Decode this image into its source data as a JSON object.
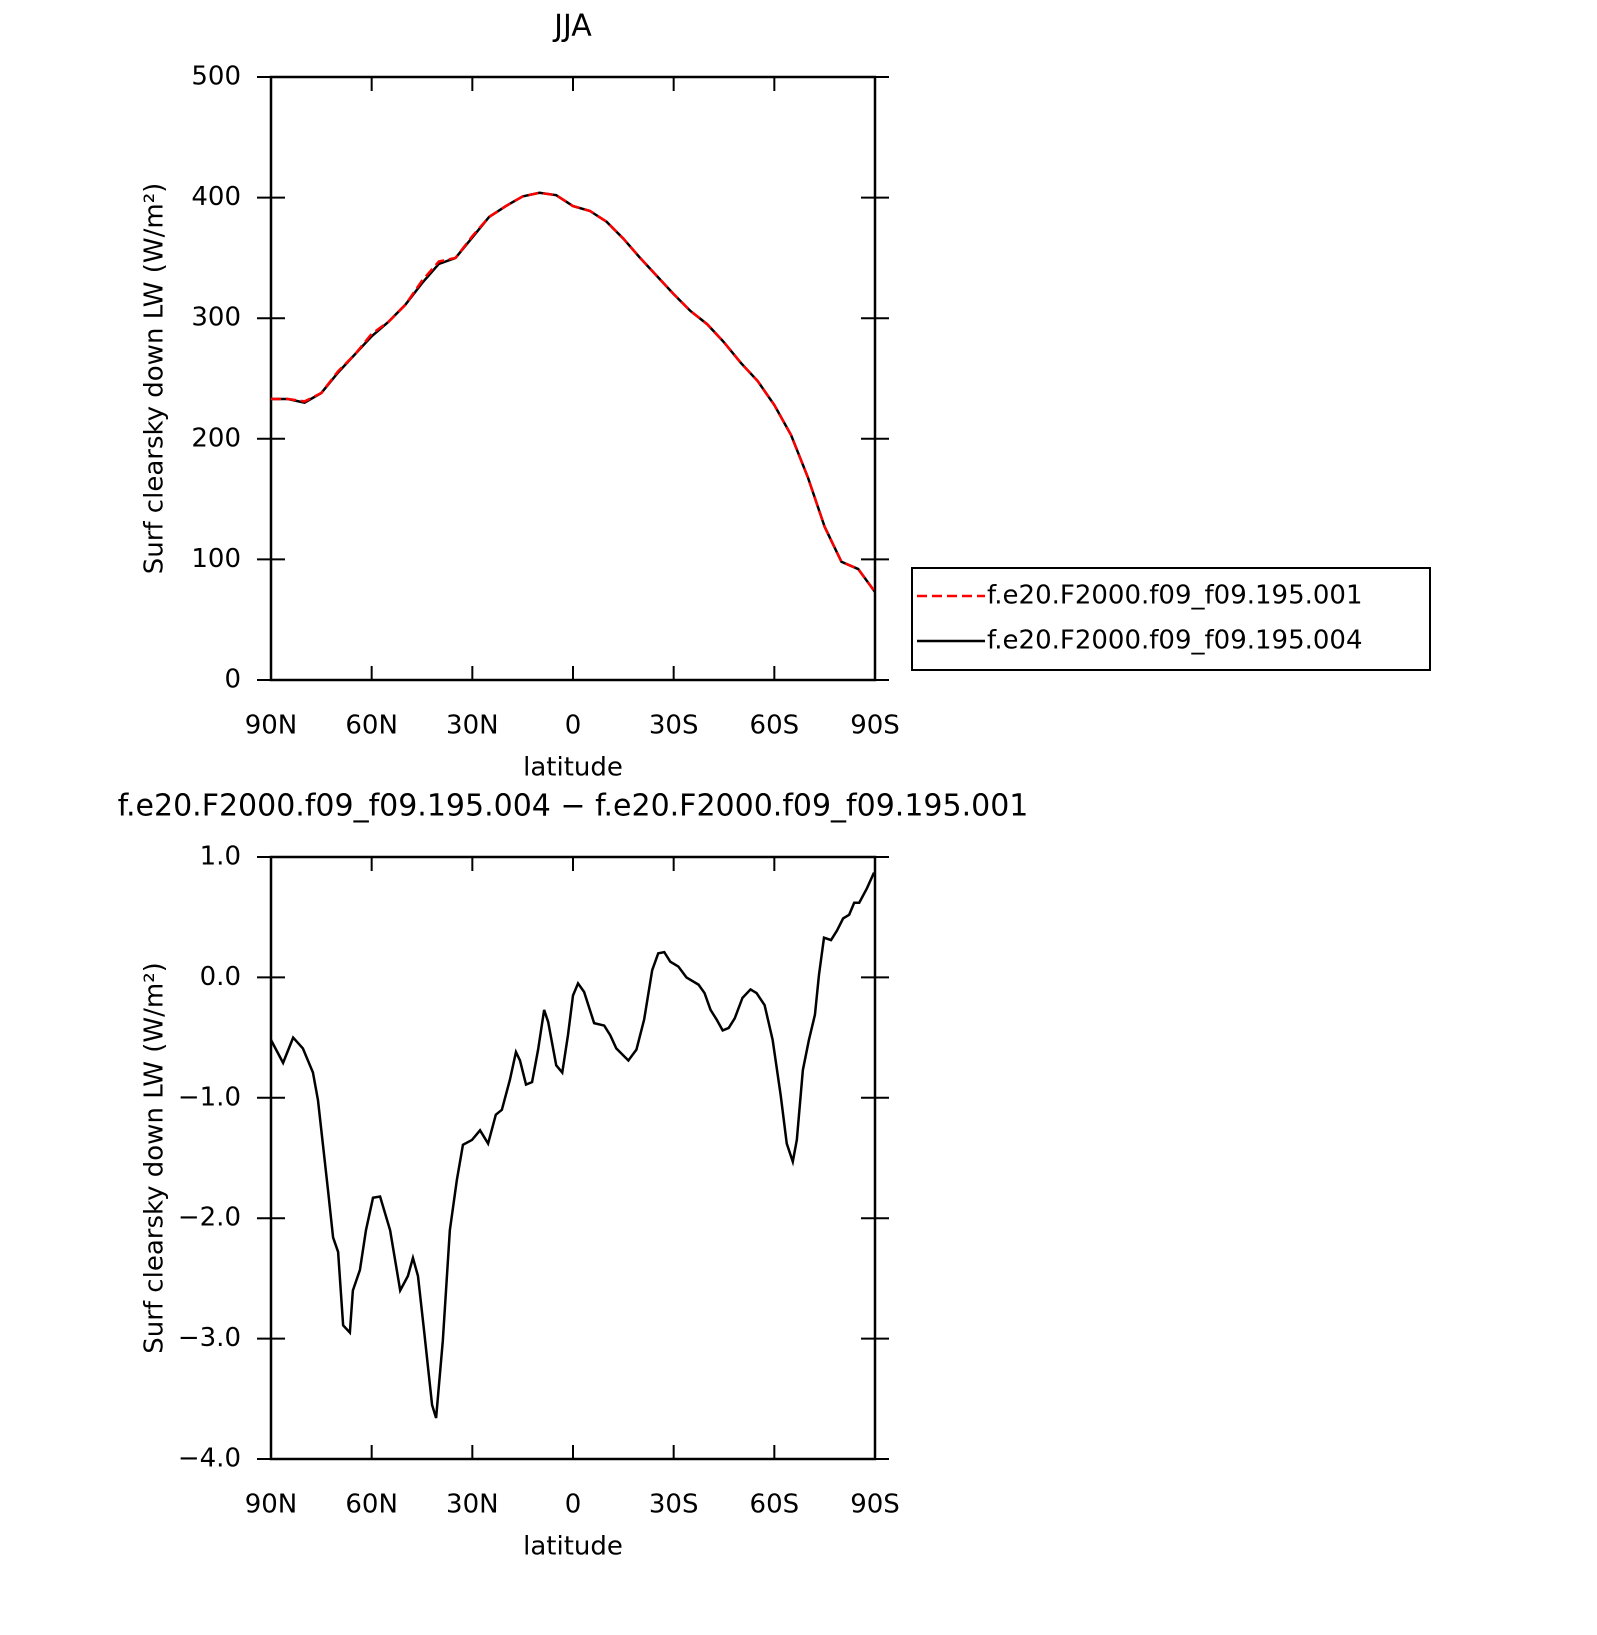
{
  "chart_data": [
    {
      "type": "line",
      "title": "JJA",
      "xlabel": "latitude",
      "ylabel": "Surf clearsky down LW (W/m²)",
      "x": [
        90,
        85,
        80,
        75,
        70,
        65,
        60,
        55,
        50,
        45,
        40,
        35,
        30,
        25,
        20,
        15,
        10,
        5,
        0,
        -5,
        -10,
        -15,
        -20,
        -25,
        -30,
        -35,
        -40,
        -45,
        -50,
        -55,
        -60,
        -65,
        -70,
        -75,
        -80,
        -85,
        -90
      ],
      "series": [
        {
          "name": "f.e20.F2000.f09_f09.195.001",
          "color": "#ff0000",
          "linestyle": "dashed",
          "values": [
            233,
            233,
            231,
            238,
            256,
            270,
            287,
            297,
            311,
            331,
            347,
            350,
            368,
            384,
            393,
            401,
            404,
            402,
            393,
            389,
            380,
            366,
            350,
            335,
            320,
            306,
            295,
            280,
            263,
            248,
            228,
            203,
            168,
            127,
            98,
            92,
            73
          ]
        },
        {
          "name": "f.e20.F2000.f09_f09.195.004",
          "color": "#000000",
          "linestyle": "solid",
          "values": [
            233,
            233,
            230,
            238,
            255,
            270,
            285,
            297,
            311,
            329,
            345,
            350,
            367,
            384,
            393,
            401,
            404,
            402,
            393,
            389,
            380,
            366,
            350,
            335,
            320,
            306,
            295,
            280,
            263,
            248,
            228,
            203,
            168,
            127,
            98,
            92,
            73
          ]
        }
      ],
      "xlim": [
        90,
        -90
      ],
      "xticks": [
        {
          "value": 90,
          "label": "90N"
        },
        {
          "value": 60,
          "label": "60N"
        },
        {
          "value": 30,
          "label": "30N"
        },
        0,
        {
          "value": -30,
          "label": "30S"
        },
        {
          "value": -60,
          "label": "60S"
        },
        {
          "value": -90,
          "label": "90S"
        }
      ],
      "ylim": [
        0,
        500
      ],
      "yticks": [
        0,
        100,
        200,
        300,
        400,
        500
      ],
      "legend": "right"
    },
    {
      "type": "line",
      "title": "f.e20.F2000.f09_f09.195.004 − f.e20.F2000.f09_f09.195.001",
      "xlabel": "latitude",
      "ylabel": "Surf clearsky down LW (W/m²)",
      "x": [
        90,
        86.4,
        83.4,
        80.5,
        77.5,
        76,
        73,
        71.5,
        70,
        68.5,
        66.5,
        65.6,
        63.5,
        61.7,
        59.6,
        57.5,
        54.5,
        51.5,
        49.2,
        47.7,
        46.2,
        44.4,
        42,
        40.8,
        38.8,
        36.7,
        34.6,
        32.8,
        30.1,
        27.7,
        25.3,
        23,
        21.2,
        18.8,
        17,
        15.8,
        14,
        12.2,
        10.4,
        8.6,
        7.4,
        5,
        3.2,
        1.5,
        0,
        -1.5,
        -3.3,
        -6.3,
        -9.3,
        -11.1,
        -12.9,
        -16.5,
        -18.9,
        -21.2,
        -23.6,
        -25.4,
        -27.2,
        -29,
        -31.4,
        -33.8,
        -37.4,
        -39.2,
        -41,
        -42.8,
        -44.6,
        -46.4,
        -48.2,
        -50.5,
        -52.9,
        -54.7,
        -57.1,
        -59.5,
        -61.9,
        -63.7,
        -65.5,
        -66.7,
        -68.5,
        -70.3,
        -72.1,
        -73.3,
        -74.8,
        -76.9,
        -78.7,
        -80.5,
        -82.3,
        -83.8,
        -85.3,
        -87.6,
        -89.7
      ],
      "series": [
        {
          "color": "#000000",
          "linestyle": "solid",
          "values": [
            -0.52,
            -0.71,
            -0.5,
            -0.59,
            -0.79,
            -1.02,
            -1.77,
            -2.16,
            -2.28,
            -2.89,
            -2.95,
            -2.6,
            -2.43,
            -2.1,
            -1.83,
            -1.82,
            -2.1,
            -2.6,
            -2.48,
            -2.33,
            -2.48,
            -2.93,
            -3.55,
            -3.66,
            -3.02,
            -2.1,
            -1.68,
            -1.39,
            -1.35,
            -1.27,
            -1.38,
            -1.14,
            -1.1,
            -0.85,
            -0.62,
            -0.69,
            -0.89,
            -0.87,
            -0.6,
            -0.27,
            -0.37,
            -0.73,
            -0.79,
            -0.48,
            -0.15,
            -0.05,
            -0.12,
            -0.38,
            -0.4,
            -0.48,
            -0.59,
            -0.69,
            -0.6,
            -0.35,
            0.06,
            0.2,
            0.21,
            0.13,
            0.09,
            0,
            -0.06,
            -0.13,
            -0.27,
            -0.35,
            -0.44,
            -0.42,
            -0.34,
            -0.17,
            -0.1,
            -0.13,
            -0.23,
            -0.52,
            -0.98,
            -1.38,
            -1.53,
            -1.35,
            -0.77,
            -0.52,
            -0.31,
            0.02,
            0.33,
            0.31,
            0.39,
            0.49,
            0.52,
            0.62,
            0.62,
            0.74,
            0.87
          ]
        }
      ],
      "xlim": [
        90,
        -90
      ],
      "xticks": [
        {
          "value": 90,
          "label": "90N"
        },
        {
          "value": 60,
          "label": "60N"
        },
        {
          "value": 30,
          "label": "30N"
        },
        0,
        {
          "value": -30,
          "label": "30S"
        },
        {
          "value": -60,
          "label": "60S"
        },
        {
          "value": -90,
          "label": "90S"
        }
      ],
      "ylim": [
        -4,
        1
      ],
      "yticks": [
        {
          "value": -4,
          "label": "−4.0"
        },
        {
          "value": -3,
          "label": "−3.0"
        },
        {
          "value": -2,
          "label": "−2.0"
        },
        {
          "value": -1,
          "label": "−1.0"
        },
        {
          "value": 0,
          "label": "0.0"
        },
        {
          "value": 1,
          "label": "1.0"
        }
      ]
    }
  ]
}
